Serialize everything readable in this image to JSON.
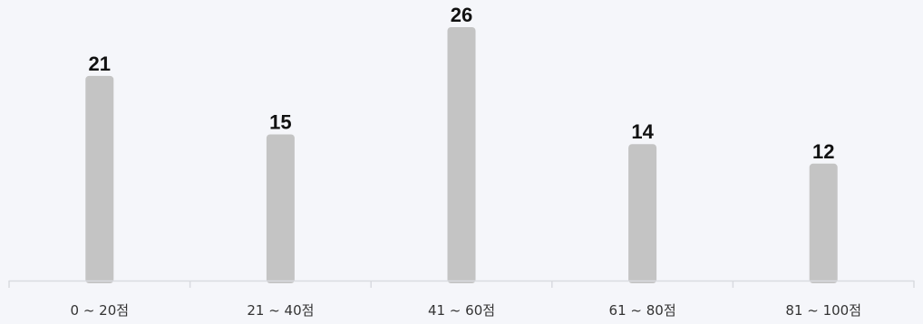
{
  "chart_data": {
    "type": "bar",
    "categories": [
      "0 ~ 20점",
      "21 ~ 40점",
      "41 ~ 60점",
      "61 ~ 80점",
      "81 ~ 100점"
    ],
    "values": [
      21,
      15,
      26,
      14,
      12
    ],
    "title": "",
    "xlabel": "",
    "ylabel": "",
    "ylim": [
      0,
      26
    ],
    "grid": false,
    "legend": "none",
    "data_labels": true
  },
  "colors": {
    "background": "#f5f6fa",
    "bar": "#c4c4c4",
    "axis": "#d9dbe0",
    "label_text": "#111111",
    "tick_text": "#333333"
  }
}
